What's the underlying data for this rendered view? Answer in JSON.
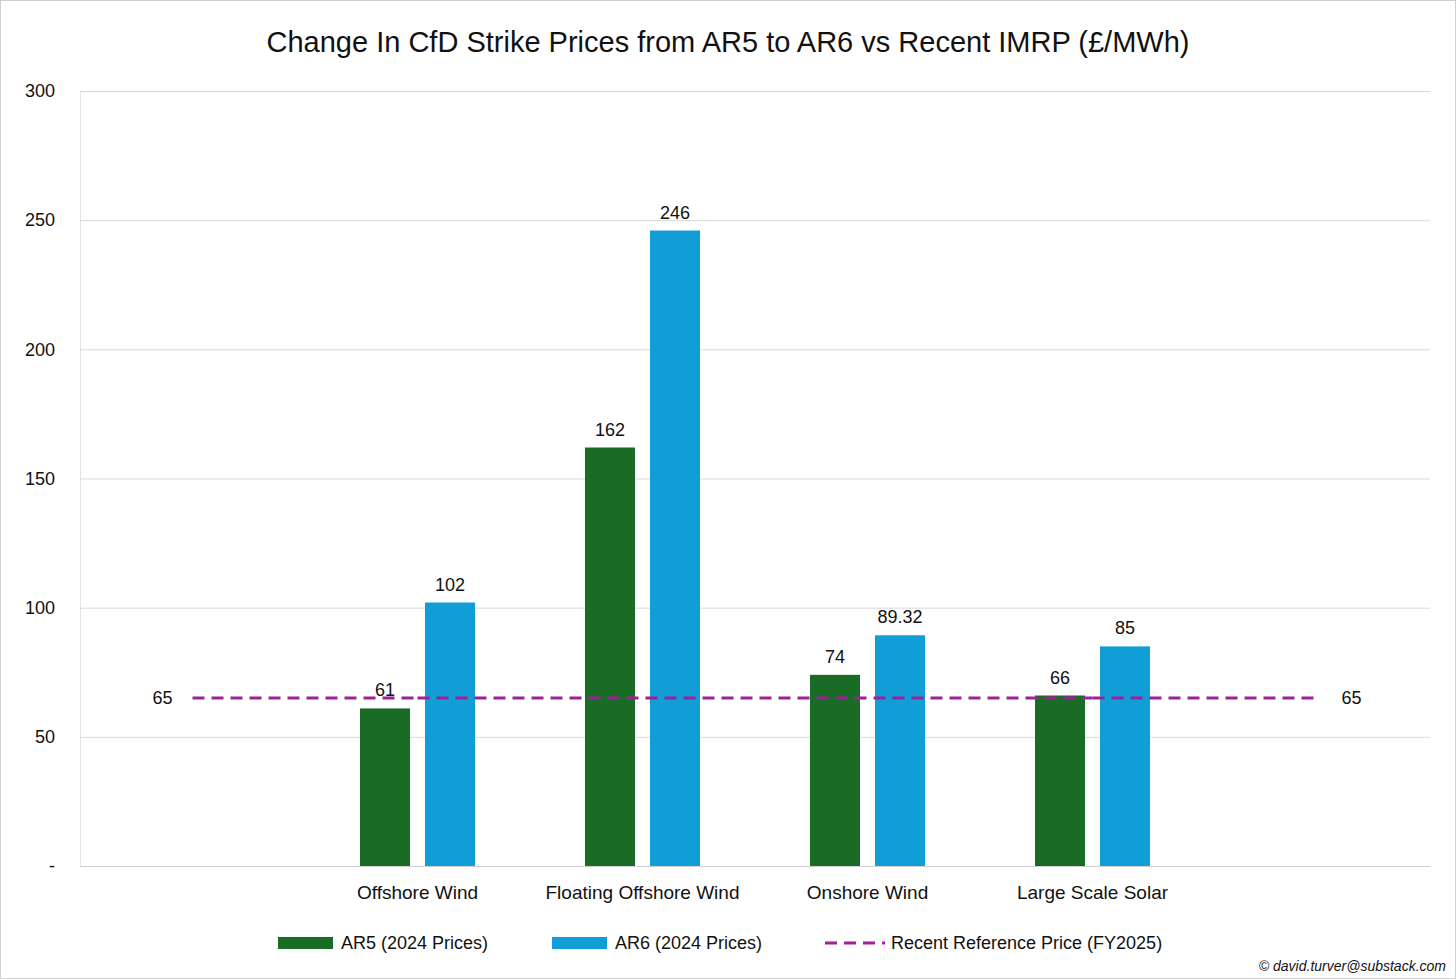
{
  "chart_data": {
    "type": "bar",
    "title": "Change In CfD Strike Prices from AR5 to AR6 vs Recent IMRP (£/MWh)",
    "categories": [
      "Offshore Wind",
      "Floating Offshore Wind",
      "Onshore Wind",
      "Large Scale Solar"
    ],
    "series": [
      {
        "name": "AR5 (2024 Prices)",
        "color": "#1a6b26",
        "values": [
          61,
          162,
          74,
          66
        ]
      },
      {
        "name": "AR6 (2024 Prices)",
        "color": "#119ed6",
        "values": [
          102,
          246,
          89.32,
          85
        ]
      },
      {
        "name": "Recent Reference Price (FY2025)",
        "color": "#a0209a",
        "type": "line",
        "line_style": "dashed",
        "values": [
          65,
          65,
          65,
          65
        ]
      }
    ],
    "ylim": [
      0,
      300
    ],
    "yticks": [
      {
        "value": 0,
        "label": "-"
      },
      50,
      100,
      150,
      200,
      250,
      300
    ],
    "grid": true,
    "legend": "bottom",
    "data_labels": true,
    "annotations": [
      "© david.turver@substack.com"
    ]
  }
}
